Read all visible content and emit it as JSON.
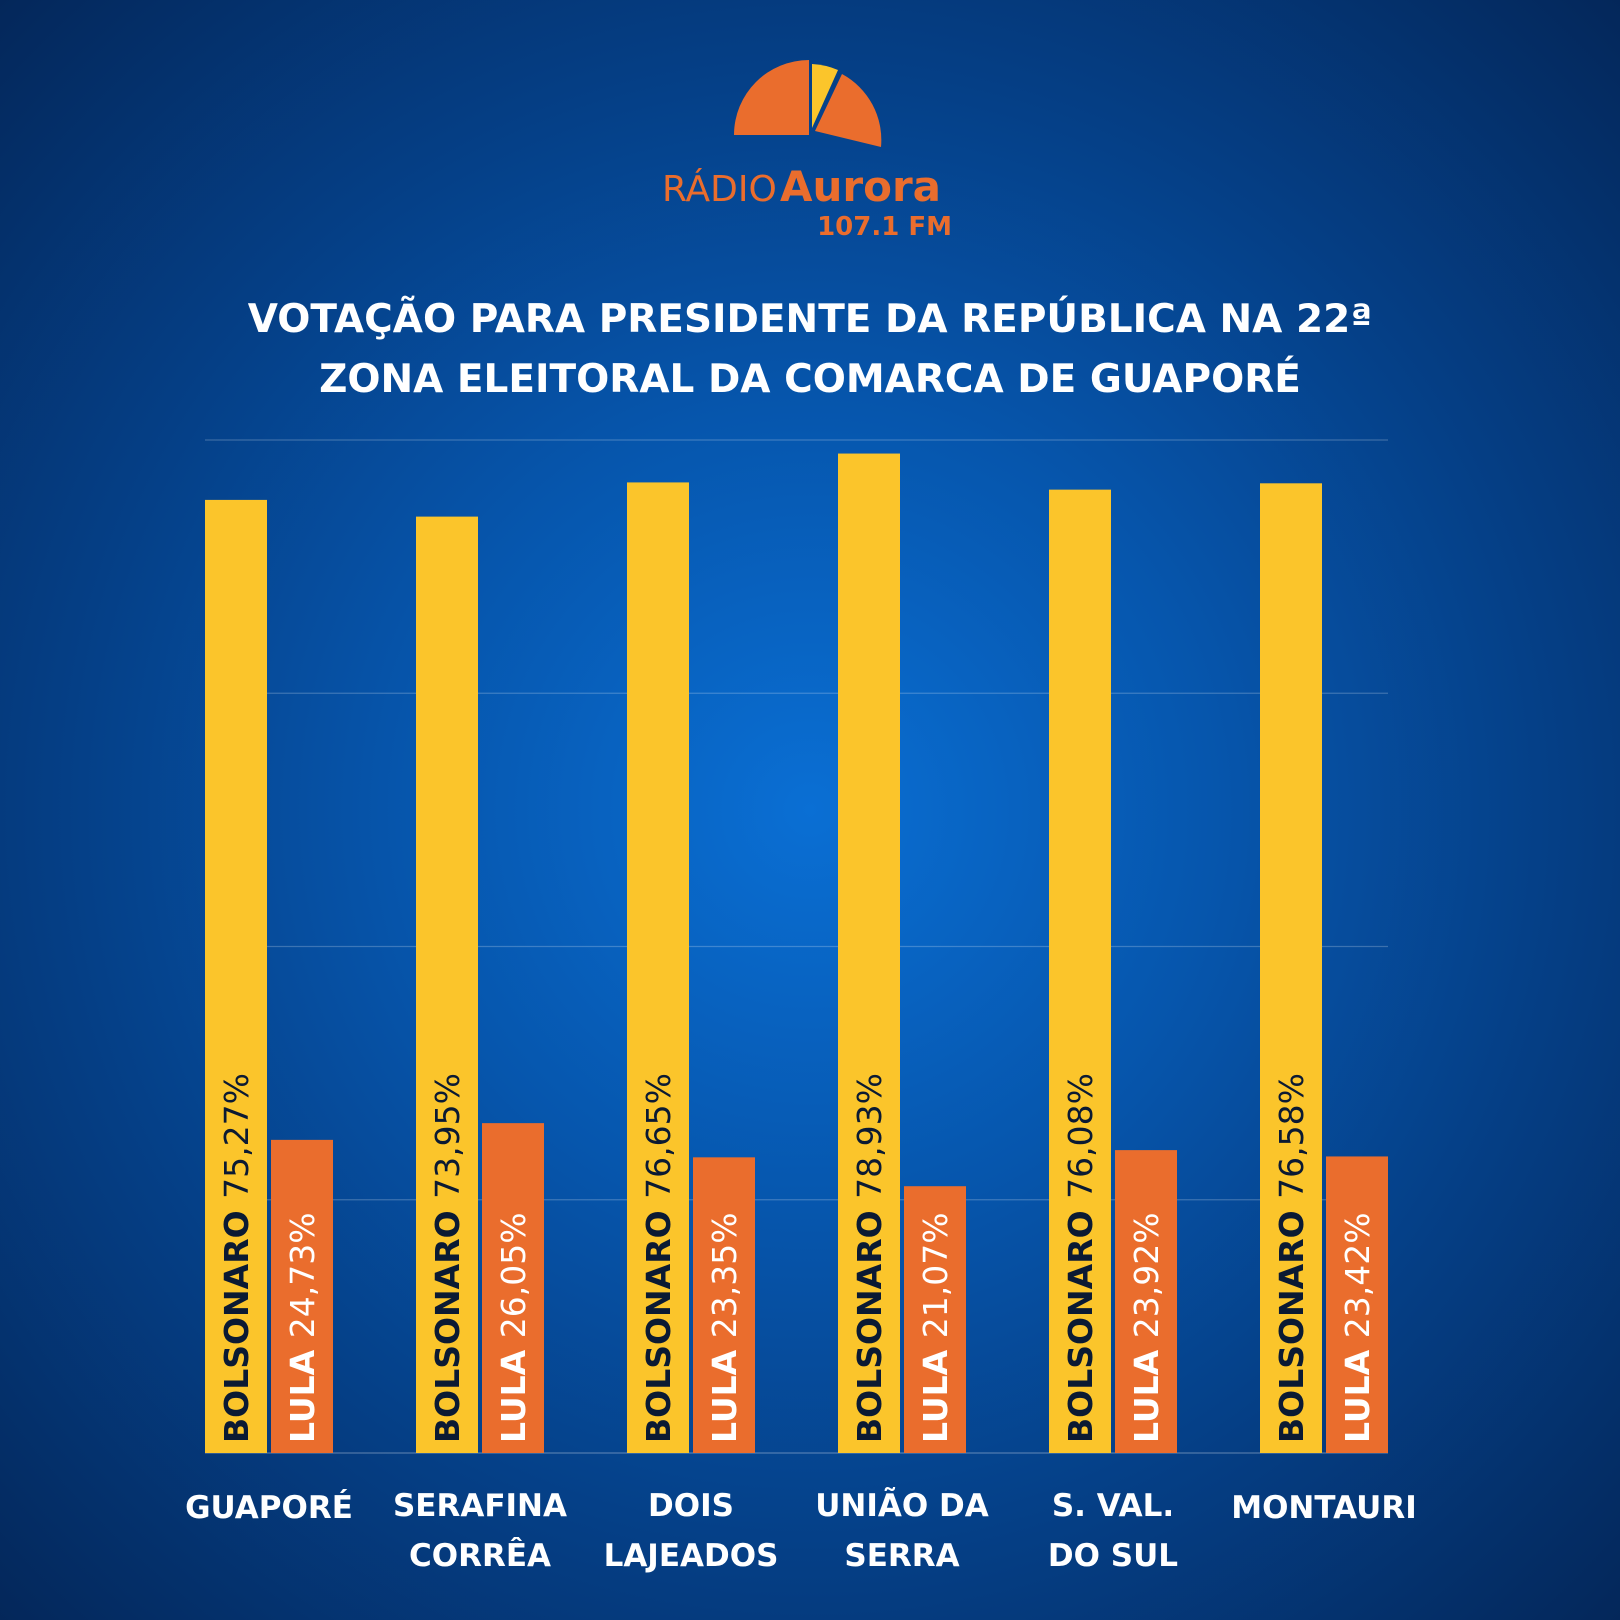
{
  "brand": {
    "name_prefix": "RÁDIO",
    "name_main": "Aurora",
    "frequency": "107.1 FM",
    "colors": {
      "orange": "#ea6d2d",
      "yellow": "#fbc52b"
    }
  },
  "title_lines": [
    "VOTAÇÃO PARA PRESIDENTE DA REPÚBLICA NA 22ª",
    "ZONA ELEITORAL DA COMARCA DE GUAPORÉ"
  ],
  "chart_data": {
    "type": "bar",
    "categories": [
      [
        "GUAPORÉ"
      ],
      [
        "SERAFINA",
        "CORRÊA"
      ],
      [
        "DOIS",
        "LAJEADOS"
      ],
      [
        "UNIÃO DA",
        "SERRA"
      ],
      [
        "S. VAL.",
        "DO SUL"
      ],
      [
        "MONTAURI"
      ]
    ],
    "series": [
      {
        "name": "BOLSONARO",
        "color": "#fbc52b",
        "label_color": "#0b1a33",
        "values": [
          75.27,
          73.95,
          76.65,
          78.93,
          76.08,
          76.58
        ],
        "value_labels": [
          "75,27%",
          "73,95%",
          "76,65%",
          "78,93%",
          "76,08%",
          "76,58%"
        ]
      },
      {
        "name": "LULA",
        "color": "#ea6d2d",
        "label_color": "#ffffff",
        "values": [
          24.73,
          26.05,
          23.35,
          21.07,
          23.92,
          23.42
        ],
        "value_labels": [
          "24,73%",
          "26,05%",
          "23,35%",
          "21,07%",
          "23,92%",
          "23,42%"
        ]
      }
    ],
    "ylim": [
      0,
      80
    ],
    "grid": true,
    "legend": "none",
    "xlabel": "",
    "ylabel": ""
  }
}
